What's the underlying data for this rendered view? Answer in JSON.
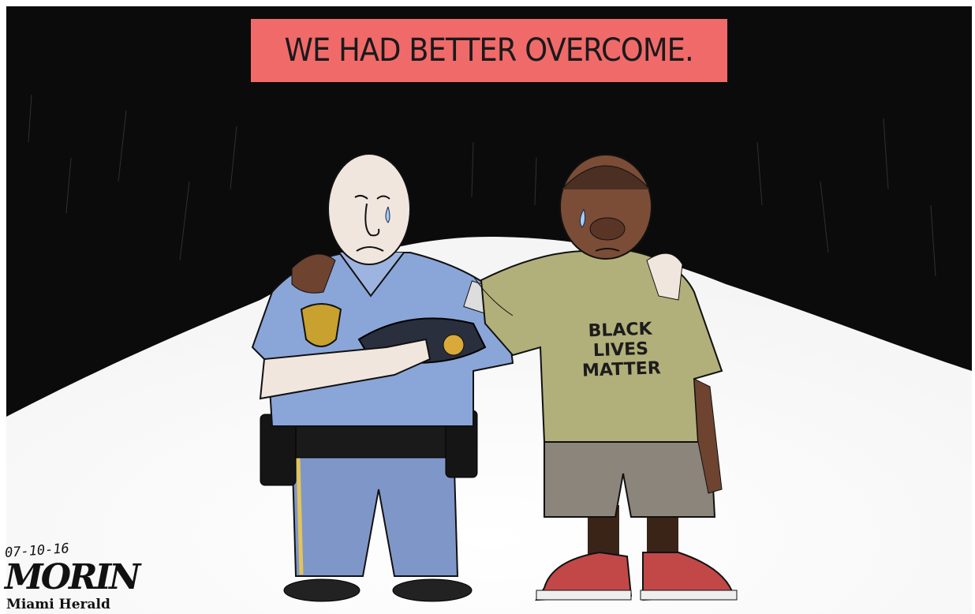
{
  "caption": "WE HAD BETTER OVERCOME.",
  "shirt": {
    "line1": "BLACK",
    "line2": "LIVES",
    "line3": "MATTER"
  },
  "artist": {
    "date": "07-10-16",
    "signature": "MORIN",
    "publication": "Miami Herald"
  },
  "colors": {
    "background_dark": "#0b0b0b",
    "banner": "#f06a6a",
    "uniform": "#8aa6d8",
    "shirt": "#b2b07a",
    "shorts": "#8b857b",
    "skin_officer": "#f1e6de",
    "skin_boy": "#7b4d37"
  }
}
